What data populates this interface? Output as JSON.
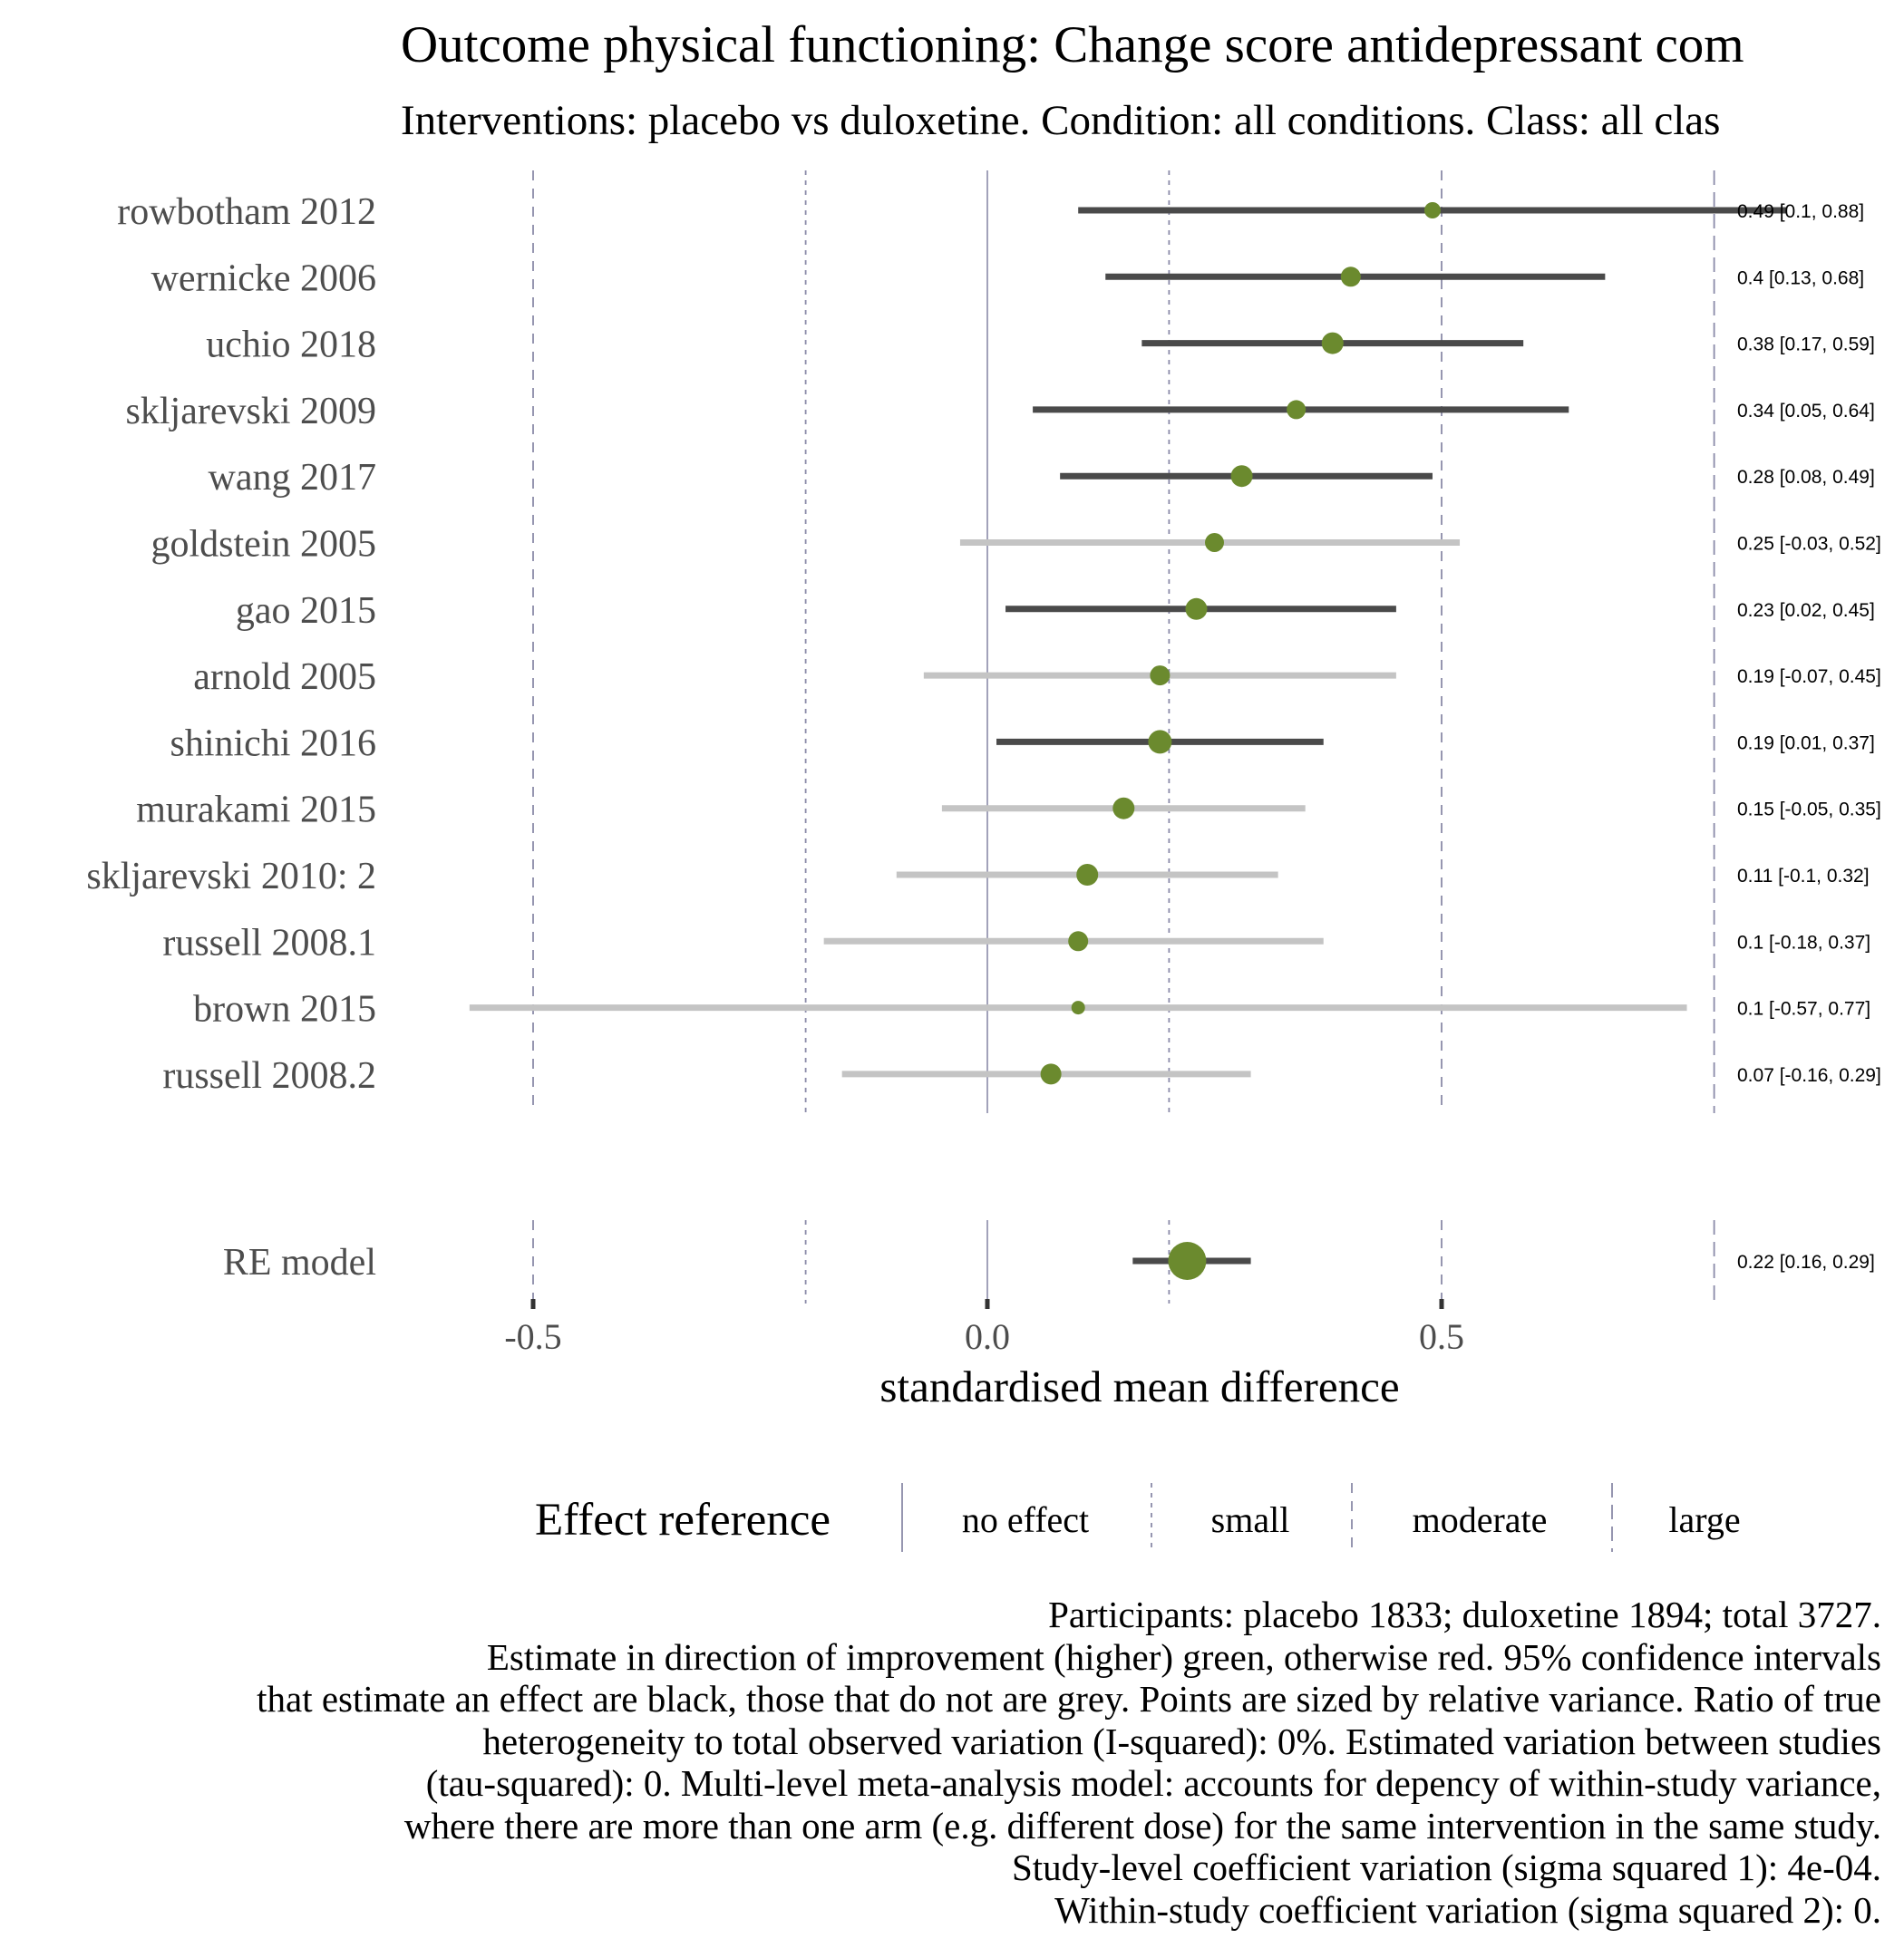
{
  "title": "Outcome physical functioning: Change score antidepressant com",
  "subtitle": "Interventions: placebo vs duloxetine. Condition: all conditions. Class: all clas",
  "chart_data": {
    "type": "forest",
    "xlabel": "standardised mean difference",
    "xticks": [
      "-0.5",
      "0.0",
      "0.5"
    ],
    "xlim": [
      -0.6,
      0.85
    ],
    "studies": [
      {
        "label": "rowbotham 2012",
        "est": 0.49,
        "lo": 0.1,
        "hi": 0.88,
        "text": "0.49 [0.1, 0.88]",
        "ci_color": "black",
        "size": 16
      },
      {
        "label": "wernicke 2006",
        "est": 0.4,
        "lo": 0.13,
        "hi": 0.68,
        "text": "0.4 [0.13, 0.68]",
        "ci_color": "black",
        "size": 20
      },
      {
        "label": "uchio 2018",
        "est": 0.38,
        "lo": 0.17,
        "hi": 0.59,
        "text": "0.38 [0.17, 0.59]",
        "ci_color": "black",
        "size": 22
      },
      {
        "label": "skljarevski 2009",
        "est": 0.34,
        "lo": 0.05,
        "hi": 0.64,
        "text": "0.34 [0.05, 0.64]",
        "ci_color": "black",
        "size": 19
      },
      {
        "label": "wang 2017",
        "est": 0.28,
        "lo": 0.08,
        "hi": 0.49,
        "text": "0.28 [0.08, 0.49]",
        "ci_color": "black",
        "size": 22
      },
      {
        "label": "goldstein 2005",
        "est": 0.25,
        "lo": -0.03,
        "hi": 0.52,
        "text": "0.25 [-0.03, 0.52]",
        "ci_color": "grey",
        "size": 19
      },
      {
        "label": "gao 2015",
        "est": 0.23,
        "lo": 0.02,
        "hi": 0.45,
        "text": "0.23 [0.02, 0.45]",
        "ci_color": "black",
        "size": 22
      },
      {
        "label": "arnold 2005",
        "est": 0.19,
        "lo": -0.07,
        "hi": 0.45,
        "text": "0.19 [-0.07, 0.45]",
        "ci_color": "grey",
        "size": 20
      },
      {
        "label": "shinichi 2016",
        "est": 0.19,
        "lo": 0.01,
        "hi": 0.37,
        "text": "0.19 [0.01, 0.37]",
        "ci_color": "black",
        "size": 24
      },
      {
        "label": "murakami 2015",
        "est": 0.15,
        "lo": -0.05,
        "hi": 0.35,
        "text": "0.15 [-0.05, 0.35]",
        "ci_color": "grey",
        "size": 22
      },
      {
        "label": "skljarevski 2010: 2",
        "est": 0.11,
        "lo": -0.1,
        "hi": 0.32,
        "text": "0.11 [-0.1, 0.32]",
        "ci_color": "grey",
        "size": 22
      },
      {
        "label": "russell 2008.1",
        "est": 0.1,
        "lo": -0.18,
        "hi": 0.37,
        "text": "0.1 [-0.18, 0.37]",
        "ci_color": "grey",
        "size": 20
      },
      {
        "label": "brown 2015",
        "est": 0.1,
        "lo": -0.57,
        "hi": 0.77,
        "text": "0.1 [-0.57, 0.77]",
        "ci_color": "grey",
        "size": 13
      },
      {
        "label": "russell 2008.2",
        "est": 0.07,
        "lo": -0.16,
        "hi": 0.29,
        "text": "0.07 [-0.16, 0.29]",
        "ci_color": "grey",
        "size": 21
      }
    ],
    "summary": {
      "label": "RE model",
      "est": 0.22,
      "lo": 0.16,
      "hi": 0.29,
      "text": "0.22 [0.16, 0.29]",
      "ci_color": "black",
      "size": 40
    },
    "reference_lines": [
      {
        "name": "no effect",
        "value": 0.0,
        "style": "solid"
      },
      {
        "name": "small",
        "value": 0.2,
        "style": "dotted"
      },
      {
        "name": "moderate",
        "value": 0.5,
        "style": "dashed"
      },
      {
        "name": "large",
        "value": 0.8,
        "style": "longdash"
      }
    ],
    "reference_lines_mirrored": [
      -0.2,
      -0.5
    ],
    "legend_title": "Effect reference",
    "legend_position": "bottom",
    "point_color": "#6b8a2e",
    "ci_black_color": "#4a4a4a",
    "ci_grey_color": "#c4c4c4",
    "ref_line_color": "#8a8aa8"
  },
  "caption": [
    "Participants: placebo 1833; duloxetine 1894; total 3727.",
    "Estimate in direction of improvement (higher) green, otherwise red. 95% confidence intervals",
    "that estimate an effect are black, those that do not are grey. Points are sized by relative variance. Ratio of true",
    "heterogeneity to total observed variation (I-squared): 0%. Estimated variation between studies",
    "(tau-squared): 0. Multi-level meta-analysis model: accounts for depency of within-study variance,",
    "where there are more than one arm (e.g. different dose) for the same intervention in the same study.",
    "Study-level coefficient variation (sigma squared 1): 4e-04.",
    "Within-study coefficient variation (sigma squared 2): 0."
  ]
}
